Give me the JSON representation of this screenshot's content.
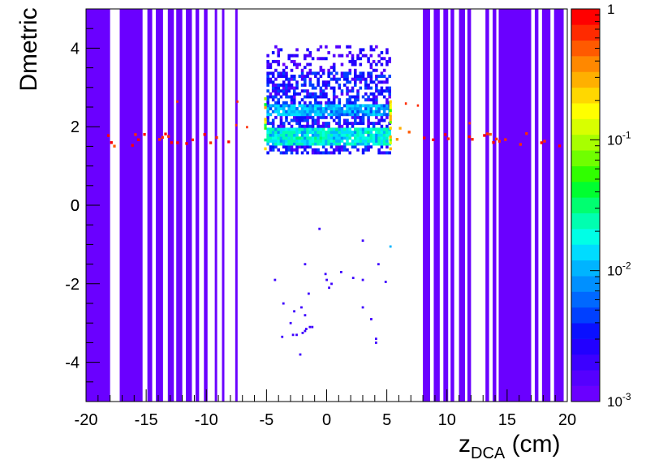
{
  "chart_data": {
    "type": "heatmap",
    "xlabel": {
      "base": "z",
      "sub": "DCA",
      "unit": " (cm)"
    },
    "ylabel": "Dmetric",
    "xlim": [
      -20,
      20
    ],
    "ylim": [
      -5,
      5
    ],
    "x_ticks": [
      "-20",
      "-15",
      "-10",
      "-5",
      "0",
      "5",
      "10",
      "15",
      "20"
    ],
    "y_ticks": [
      "-4",
      "-2",
      "0",
      "2",
      "4"
    ],
    "colorbar": {
      "scale": "log",
      "min": 0.001,
      "max": 1,
      "labels": [
        {
          "value": 1,
          "base": "1",
          "exp": ""
        },
        {
          "value": 0.1,
          "base": "10",
          "exp": "-1"
        },
        {
          "value": 0.01,
          "base": "10",
          "exp": "-2"
        },
        {
          "value": 0.001,
          "base": "10",
          "exp": "-3"
        }
      ]
    },
    "background_bands_x": [
      [
        -20,
        -18
      ],
      [
        -17.2,
        -15.3
      ],
      [
        -14.9,
        -14.5
      ],
      [
        -14.2,
        -13.6
      ],
      [
        -13.2,
        -12.7
      ],
      [
        -12.5,
        -12.0
      ],
      [
        -11.7,
        -11.2
      ],
      [
        -10.9,
        -10.6
      ],
      [
        -10.2,
        -9.9
      ],
      [
        -9.3,
        -9.1
      ],
      [
        -8.7,
        -8.5
      ],
      [
        -7.6,
        -7.4
      ],
      [
        8.0,
        8.6
      ],
      [
        8.9,
        9.4
      ],
      [
        9.7,
        10.1
      ],
      [
        10.3,
        10.6
      ],
      [
        11.0,
        11.5
      ],
      [
        11.7,
        12.0
      ],
      [
        13.2,
        13.5
      ],
      [
        13.8,
        14.1
      ],
      [
        14.3,
        17.0
      ],
      [
        17.3,
        17.6
      ],
      [
        17.9,
        18.6
      ],
      [
        18.9,
        19.7
      ]
    ],
    "scatter_points": [
      [
        -0.6,
        -0.6
      ],
      [
        3.0,
        -0.9
      ],
      [
        5.3,
        -1.05
      ],
      [
        -1.8,
        -1.5
      ],
      [
        4.3,
        -1.5
      ],
      [
        -0.1,
        -1.75
      ],
      [
        1.2,
        -1.7
      ],
      [
        -4.3,
        -1.9
      ],
      [
        0.0,
        -1.9
      ],
      [
        2.2,
        -1.85
      ],
      [
        3.0,
        -1.9
      ],
      [
        4.9,
        -1.95
      ],
      [
        -1.5,
        -2.25
      ],
      [
        0.4,
        -2.0
      ],
      [
        -2.1,
        -2.6
      ],
      [
        0.2,
        -2.1
      ],
      [
        -3.6,
        -2.5
      ],
      [
        -2.7,
        -2.7
      ],
      [
        -1.8,
        -2.8
      ],
      [
        3.0,
        -2.6
      ],
      [
        -3.0,
        -3.0
      ],
      [
        -2.5,
        -3.3
      ],
      [
        -1.2,
        -3.1
      ],
      [
        3.7,
        -2.9
      ],
      [
        -1.8,
        -3.2
      ],
      [
        -1.4,
        -3.1
      ],
      [
        -2.8,
        -3.3
      ],
      [
        -1.7,
        -3.15
      ],
      [
        -2.0,
        -3.25
      ],
      [
        -3.7,
        -3.35
      ],
      [
        4.1,
        -3.4
      ],
      [
        -2.2,
        -3.8
      ],
      [
        4.1,
        -3.5
      ]
    ]
  }
}
